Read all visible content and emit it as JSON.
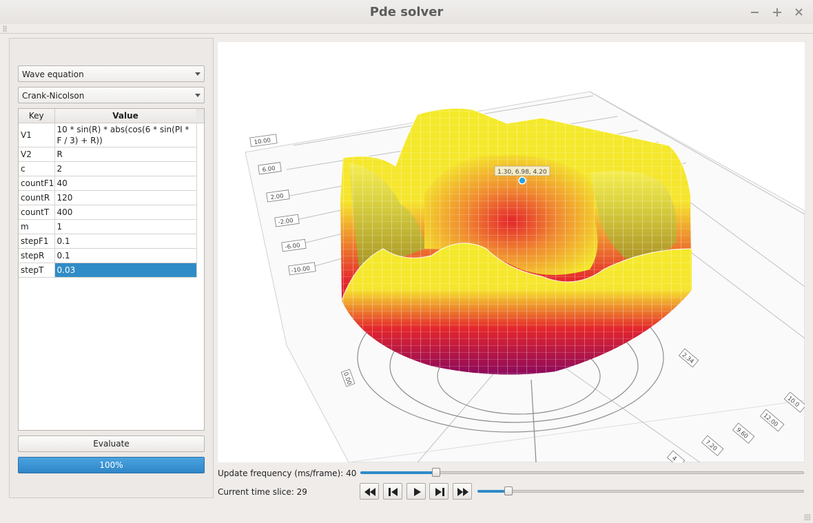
{
  "window": {
    "title": "Pde solver"
  },
  "equation_select": {
    "value": "Wave equation"
  },
  "method_select": {
    "value": "Crank-Nicolson"
  },
  "params_table": {
    "headers": [
      "Key",
      "Value"
    ],
    "rows": [
      {
        "key": "V1",
        "value": "10 * sin(R)  * abs(cos(6 * sin(PI * F / 3) + R))"
      },
      {
        "key": "V2",
        "value": "R"
      },
      {
        "key": "c",
        "value": "2"
      },
      {
        "key": "countF1",
        "value": "40"
      },
      {
        "key": "countR",
        "value": "120"
      },
      {
        "key": "countT",
        "value": "400"
      },
      {
        "key": "m",
        "value": "1"
      },
      {
        "key": "stepF1",
        "value": "0.1"
      },
      {
        "key": "stepR",
        "value": "0.1"
      },
      {
        "key": "stepT",
        "value": "0.03"
      }
    ],
    "selected_row": "stepT"
  },
  "evaluate_button": {
    "label": "Evaluate"
  },
  "progress": {
    "value": 1.0,
    "label": "100%"
  },
  "plot": {
    "z_ticks": [
      "10.00",
      "6.00",
      "2.00",
      "-2.00",
      "-6.00",
      "-10.00"
    ],
    "radial_ticks": [
      "0.00",
      "2.34",
      "4",
      "7.20",
      "9.60",
      "12.00",
      "10.0"
    ],
    "tooltip": "1.30, 6.98, 4.20",
    "colors": {
      "low": "#8b0a5c",
      "mid": "#e4262c",
      "high": "#f4ea2a"
    }
  },
  "update_frequency": {
    "label": "Update frequency (ms/frame): 40",
    "level": 0.165
  },
  "time_slice": {
    "label": "Current time slice: 29",
    "level": 0.085
  },
  "player_buttons": [
    "rewind-icon",
    "skip-back-icon",
    "play-icon",
    "skip-forward-icon",
    "fast-forward-icon"
  ]
}
